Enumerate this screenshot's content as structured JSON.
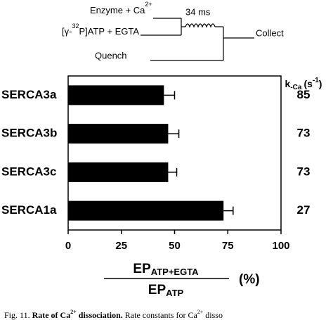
{
  "diagram": {
    "enzyme": "Enzyme + Ca",
    "enzyme_sup": "2+",
    "atp_pre": "[γ-",
    "atp_sup": "32",
    "atp_post": "P]ATP + EGTA",
    "delay": "34 ms",
    "quench": "Quench",
    "collect": "Collect"
  },
  "chart_data": {
    "type": "bar",
    "orientation": "horizontal",
    "categories": [
      "SERCA3a",
      "SERCA3b",
      "SERCA3c",
      "SERCA1a"
    ],
    "values": [
      45,
      47,
      47,
      73
    ],
    "errors": [
      5,
      5,
      4,
      4.5
    ],
    "color": "#000000",
    "xlim": [
      0,
      100
    ],
    "xticks": [
      0,
      25,
      50,
      75,
      100
    ],
    "xlabel": {
      "numerator": "EP",
      "numerator_sub": "ATP+EGTA",
      "denominator": "EP",
      "denominator_sub": "ATP",
      "unit": "(%)"
    },
    "side_column": {
      "header": "k",
      "header_sub": "-Ca",
      "header_unit": "(s",
      "header_sup": "-1",
      "header_close": ")",
      "values": [
        85,
        73,
        73,
        27
      ]
    }
  },
  "caption": {
    "label": "Fig. 11.",
    "title": "Rate of Ca",
    "title_sup": "2+",
    "title_end": "dissociation.",
    "text": "Rate constants for Ca",
    "text_sup": "2+",
    "text_end": "disso"
  }
}
